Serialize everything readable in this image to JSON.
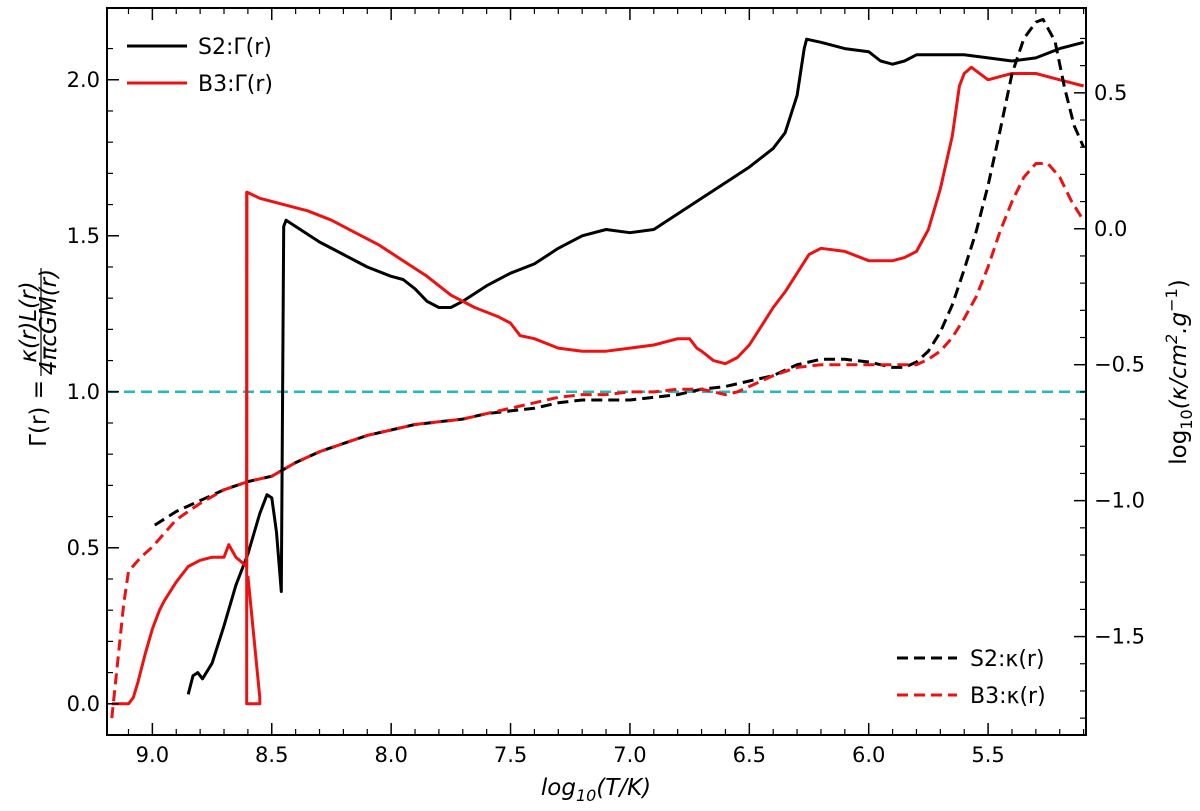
{
  "chart_data": {
    "type": "line",
    "xlabel": {
      "main": "log",
      "sub": "10",
      "rest": "(T/K)"
    },
    "ylabel_left": {
      "pre": "Γ(r) = ",
      "num": "κ(r)L(r)",
      "den": "4πcGM(r)"
    },
    "ylabel_right": {
      "main": "log",
      "sub": "10",
      "rest": "(κ/cm",
      "sup1": "2",
      "mid": ".g",
      "sup2": "−1",
      "end": ")"
    },
    "x_range": [
      9.19,
      5.09
    ],
    "x_reversed": true,
    "ylim_left": [
      -0.1,
      2.23
    ],
    "ylim_right": [
      -1.862,
      0.812
    ],
    "x_ticks": [
      "9.0",
      "8.5",
      "8.0",
      "7.5",
      "7.0",
      "6.5",
      "6.0",
      "5.5"
    ],
    "y_ticks_left": [
      "0.0",
      "0.5",
      "1.0",
      "1.5",
      "2.0"
    ],
    "y_ticks_right": [
      "−1.5",
      "−1.0",
      "−0.5",
      "0.0",
      "0.5"
    ],
    "x_tick_values": [
      9.0,
      8.5,
      8.0,
      7.5,
      7.0,
      6.5,
      6.0,
      5.5
    ],
    "y_tick_values_left": [
      0.0,
      0.5,
      1.0,
      1.5,
      2.0
    ],
    "y_tick_values_right": [
      -1.5,
      -1.0,
      -0.5,
      0.0,
      0.5
    ],
    "reference_line": {
      "y": 1.0,
      "color": "#22bbbb",
      "style": "dashed"
    },
    "legend_top_left": [
      "S2:Γ(r)",
      "B3:Γ(r)"
    ],
    "legend_bottom_right": [
      "S2:κ(r)",
      "B3:κ(r)"
    ],
    "series": [
      {
        "name": "S2:Γ(r)",
        "axis": "left",
        "color": "#000000",
        "style": "solid",
        "points": [
          [
            8.85,
            0.03
          ],
          [
            8.83,
            0.09
          ],
          [
            8.81,
            0.1
          ],
          [
            8.79,
            0.08
          ],
          [
            8.75,
            0.13
          ],
          [
            8.7,
            0.25
          ],
          [
            8.65,
            0.38
          ],
          [
            8.6,
            0.48
          ],
          [
            8.55,
            0.61
          ],
          [
            8.52,
            0.67
          ],
          [
            8.5,
            0.66
          ],
          [
            8.48,
            0.55
          ],
          [
            8.46,
            0.36
          ],
          [
            8.45,
            1.53
          ],
          [
            8.44,
            1.55
          ],
          [
            8.3,
            1.48
          ],
          [
            8.2,
            1.44
          ],
          [
            8.1,
            1.4
          ],
          [
            8.0,
            1.37
          ],
          [
            7.95,
            1.36
          ],
          [
            7.9,
            1.33
          ],
          [
            7.85,
            1.29
          ],
          [
            7.8,
            1.27
          ],
          [
            7.75,
            1.27
          ],
          [
            7.7,
            1.29
          ],
          [
            7.6,
            1.34
          ],
          [
            7.5,
            1.38
          ],
          [
            7.4,
            1.41
          ],
          [
            7.3,
            1.46
          ],
          [
            7.2,
            1.5
          ],
          [
            7.1,
            1.52
          ],
          [
            7.0,
            1.51
          ],
          [
            6.9,
            1.52
          ],
          [
            6.8,
            1.57
          ],
          [
            6.7,
            1.62
          ],
          [
            6.6,
            1.67
          ],
          [
            6.5,
            1.72
          ],
          [
            6.4,
            1.78
          ],
          [
            6.35,
            1.83
          ],
          [
            6.3,
            1.95
          ],
          [
            6.27,
            2.1
          ],
          [
            6.26,
            2.13
          ],
          [
            6.2,
            2.12
          ],
          [
            6.1,
            2.1
          ],
          [
            6.0,
            2.09
          ],
          [
            5.95,
            2.06
          ],
          [
            5.9,
            2.05
          ],
          [
            5.85,
            2.06
          ],
          [
            5.8,
            2.08
          ],
          [
            5.7,
            2.08
          ],
          [
            5.6,
            2.08
          ],
          [
            5.5,
            2.07
          ],
          [
            5.4,
            2.06
          ],
          [
            5.3,
            2.07
          ],
          [
            5.2,
            2.1
          ],
          [
            5.1,
            2.12
          ]
        ]
      },
      {
        "name": "B3:Γ(r)",
        "axis": "left",
        "color": "#ee1111",
        "style": "solid",
        "points": [
          [
            9.17,
            0.0
          ],
          [
            9.1,
            0.0
          ],
          [
            9.08,
            0.02
          ],
          [
            9.06,
            0.07
          ],
          [
            9.03,
            0.16
          ],
          [
            9.0,
            0.24
          ],
          [
            8.97,
            0.3
          ],
          [
            8.95,
            0.33
          ],
          [
            8.9,
            0.39
          ],
          [
            8.85,
            0.44
          ],
          [
            8.8,
            0.46
          ],
          [
            8.75,
            0.47
          ],
          [
            8.7,
            0.47
          ],
          [
            8.68,
            0.51
          ],
          [
            8.65,
            0.47
          ],
          [
            8.62,
            0.45
          ],
          [
            8.605,
            0.44
          ],
          [
            8.604,
            1.64
          ],
          [
            8.55,
            1.62
          ],
          [
            8.45,
            1.6
          ],
          [
            8.35,
            1.58
          ],
          [
            8.25,
            1.55
          ],
          [
            8.15,
            1.51
          ],
          [
            8.05,
            1.47
          ],
          [
            7.95,
            1.42
          ],
          [
            7.85,
            1.37
          ],
          [
            7.75,
            1.31
          ],
          [
            7.65,
            1.27
          ],
          [
            7.55,
            1.24
          ],
          [
            7.5,
            1.22
          ],
          [
            7.48,
            1.2
          ],
          [
            7.46,
            1.18
          ],
          [
            7.4,
            1.17
          ],
          [
            7.3,
            1.14
          ],
          [
            7.2,
            1.13
          ],
          [
            7.1,
            1.13
          ],
          [
            7.0,
            1.14
          ],
          [
            6.9,
            1.15
          ],
          [
            6.8,
            1.17
          ],
          [
            6.75,
            1.17
          ],
          [
            6.72,
            1.14
          ],
          [
            6.7,
            1.13
          ],
          [
            6.65,
            1.1
          ],
          [
            6.6,
            1.09
          ],
          [
            6.55,
            1.11
          ],
          [
            6.5,
            1.15
          ],
          [
            6.45,
            1.21
          ],
          [
            6.4,
            1.27
          ],
          [
            6.35,
            1.32
          ],
          [
            6.3,
            1.38
          ],
          [
            6.25,
            1.44
          ],
          [
            6.2,
            1.46
          ],
          [
            6.1,
            1.45
          ],
          [
            6.0,
            1.42
          ],
          [
            5.95,
            1.42
          ],
          [
            5.9,
            1.42
          ],
          [
            5.85,
            1.43
          ],
          [
            5.8,
            1.45
          ],
          [
            5.75,
            1.52
          ],
          [
            5.7,
            1.65
          ],
          [
            5.65,
            1.82
          ],
          [
            5.62,
            1.98
          ],
          [
            5.6,
            2.02
          ],
          [
            5.57,
            2.04
          ],
          [
            5.5,
            2.0
          ],
          [
            5.45,
            2.01
          ],
          [
            5.4,
            2.02
          ],
          [
            5.35,
            2.02
          ],
          [
            5.3,
            2.02
          ],
          [
            5.2,
            2.0
          ],
          [
            5.1,
            1.98
          ]
        ]
      },
      {
        "name": "B3:Γ(r) spike",
        "axis": "left",
        "color": "#ee1111",
        "style": "solid",
        "points": [
          [
            8.605,
            1.64
          ],
          [
            8.605,
            0.0
          ],
          [
            8.55,
            0.0
          ],
          [
            8.55,
            0.02
          ],
          [
            8.6,
            0.41
          ]
        ]
      },
      {
        "name": "S2:κ(r)",
        "axis": "right",
        "color": "#000000",
        "style": "dashed",
        "points": [
          [
            8.99,
            -1.09
          ],
          [
            8.9,
            -1.04
          ],
          [
            8.8,
            -1.0
          ],
          [
            8.7,
            -0.96
          ],
          [
            8.6,
            -0.93
          ],
          [
            8.5,
            -0.91
          ],
          [
            8.4,
            -0.86
          ],
          [
            8.3,
            -0.82
          ],
          [
            8.2,
            -0.79
          ],
          [
            8.1,
            -0.76
          ],
          [
            8.0,
            -0.74
          ],
          [
            7.9,
            -0.72
          ],
          [
            7.8,
            -0.71
          ],
          [
            7.7,
            -0.7
          ],
          [
            7.6,
            -0.68
          ],
          [
            7.5,
            -0.67
          ],
          [
            7.4,
            -0.66
          ],
          [
            7.3,
            -0.64
          ],
          [
            7.2,
            -0.63
          ],
          [
            7.1,
            -0.63
          ],
          [
            7.0,
            -0.63
          ],
          [
            6.9,
            -0.62
          ],
          [
            6.8,
            -0.61
          ],
          [
            6.7,
            -0.59
          ],
          [
            6.6,
            -0.58
          ],
          [
            6.5,
            -0.56
          ],
          [
            6.4,
            -0.54
          ],
          [
            6.3,
            -0.5
          ],
          [
            6.2,
            -0.48
          ],
          [
            6.1,
            -0.48
          ],
          [
            6.0,
            -0.49
          ],
          [
            5.95,
            -0.5
          ],
          [
            5.9,
            -0.51
          ],
          [
            5.85,
            -0.51
          ],
          [
            5.8,
            -0.49
          ],
          [
            5.75,
            -0.45
          ],
          [
            5.7,
            -0.38
          ],
          [
            5.65,
            -0.28
          ],
          [
            5.6,
            -0.15
          ],
          [
            5.55,
            -0.01
          ],
          [
            5.5,
            0.16
          ],
          [
            5.45,
            0.36
          ],
          [
            5.4,
            0.57
          ],
          [
            5.35,
            0.7
          ],
          [
            5.3,
            0.76
          ],
          [
            5.27,
            0.77
          ],
          [
            5.22,
            0.69
          ],
          [
            5.18,
            0.52
          ],
          [
            5.14,
            0.38
          ],
          [
            5.1,
            0.3
          ]
        ]
      },
      {
        "name": "B3:κ(r)",
        "axis": "right",
        "color": "#ee1111",
        "style": "dashed",
        "points": [
          [
            9.17,
            -1.8
          ],
          [
            9.14,
            -1.55
          ],
          [
            9.12,
            -1.38
          ],
          [
            9.1,
            -1.26
          ],
          [
            9.05,
            -1.21
          ],
          [
            9.0,
            -1.17
          ],
          [
            8.95,
            -1.12
          ],
          [
            8.9,
            -1.07
          ],
          [
            8.8,
            -1.01
          ],
          [
            8.7,
            -0.96
          ],
          [
            8.6,
            -0.93
          ],
          [
            8.5,
            -0.91
          ],
          [
            8.4,
            -0.86
          ],
          [
            8.3,
            -0.82
          ],
          [
            8.2,
            -0.79
          ],
          [
            8.1,
            -0.76
          ],
          [
            8.0,
            -0.74
          ],
          [
            7.9,
            -0.72
          ],
          [
            7.8,
            -0.71
          ],
          [
            7.7,
            -0.7
          ],
          [
            7.6,
            -0.68
          ],
          [
            7.5,
            -0.66
          ],
          [
            7.4,
            -0.64
          ],
          [
            7.3,
            -0.62
          ],
          [
            7.2,
            -0.61
          ],
          [
            7.1,
            -0.61
          ],
          [
            7.0,
            -0.6
          ],
          [
            6.9,
            -0.6
          ],
          [
            6.8,
            -0.59
          ],
          [
            6.7,
            -0.59
          ],
          [
            6.65,
            -0.6
          ],
          [
            6.6,
            -0.61
          ],
          [
            6.55,
            -0.6
          ],
          [
            6.5,
            -0.58
          ],
          [
            6.4,
            -0.54
          ],
          [
            6.3,
            -0.51
          ],
          [
            6.2,
            -0.5
          ],
          [
            6.1,
            -0.5
          ],
          [
            6.0,
            -0.5
          ],
          [
            5.9,
            -0.5
          ],
          [
            5.8,
            -0.5
          ],
          [
            5.75,
            -0.48
          ],
          [
            5.7,
            -0.45
          ],
          [
            5.65,
            -0.4
          ],
          [
            5.6,
            -0.33
          ],
          [
            5.55,
            -0.25
          ],
          [
            5.5,
            -0.14
          ],
          [
            5.45,
            -0.01
          ],
          [
            5.4,
            0.1
          ],
          [
            5.35,
            0.19
          ],
          [
            5.3,
            0.24
          ],
          [
            5.25,
            0.24
          ],
          [
            5.2,
            0.19
          ],
          [
            5.15,
            0.1
          ],
          [
            5.1,
            0.03
          ]
        ]
      }
    ]
  }
}
